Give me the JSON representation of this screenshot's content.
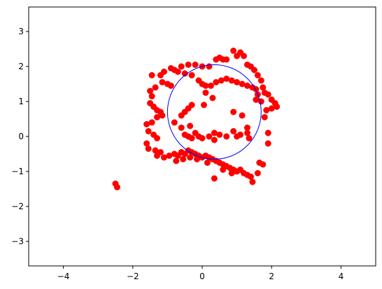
{
  "chart_data": {
    "type": "scatter",
    "title": "",
    "xlabel": "",
    "ylabel": "",
    "xlim": [
      -5,
      5
    ],
    "ylim": [
      -3.7,
      3.7
    ],
    "x_ticks": [
      -4,
      -2,
      0,
      2,
      4
    ],
    "y_ticks": [
      -3,
      -2,
      -1,
      0,
      1,
      2,
      3
    ],
    "x_tick_labels": [
      "−4",
      "−2",
      "0",
      "2",
      "4"
    ],
    "y_tick_labels": [
      "−3",
      "−2",
      "−1",
      "0",
      "1",
      "2",
      "3"
    ],
    "grid": false,
    "legend": "none",
    "marker_color": "#ff0000",
    "circle": {
      "center": [
        0.35,
        0.7
      ],
      "radius": 1.35,
      "color": "#0000ff"
    },
    "points": [
      [
        -0.6,
        2.0
      ],
      [
        -0.4,
        2.05
      ],
      [
        -0.2,
        2.05
      ],
      [
        0.0,
        2.0
      ],
      [
        0.2,
        2.0
      ],
      [
        0.4,
        2.2
      ],
      [
        0.5,
        2.25
      ],
      [
        0.6,
        2.2
      ],
      [
        0.7,
        2.2
      ],
      [
        0.9,
        2.45
      ],
      [
        1.0,
        2.3
      ],
      [
        1.1,
        2.4
      ],
      [
        1.2,
        2.3
      ],
      [
        1.3,
        2.05
      ],
      [
        1.4,
        2.0
      ],
      [
        1.5,
        1.9
      ],
      [
        1.6,
        1.75
      ],
      [
        1.7,
        1.6
      ],
      [
        1.75,
        1.4
      ],
      [
        1.8,
        1.25
      ],
      [
        1.9,
        1.2
      ],
      [
        2.0,
        1.05
      ],
      [
        2.1,
        0.95
      ],
      [
        2.15,
        0.85
      ],
      [
        2.0,
        0.8
      ],
      [
        1.85,
        0.75
      ],
      [
        1.8,
        0.55
      ],
      [
        1.9,
        0.1
      ],
      [
        1.9,
        -0.2
      ],
      [
        -1.45,
        1.75
      ],
      [
        -1.2,
        1.75
      ],
      [
        -1.1,
        1.85
      ],
      [
        -0.9,
        1.95
      ],
      [
        -0.8,
        1.9
      ],
      [
        -0.7,
        1.85
      ],
      [
        -0.5,
        1.8
      ],
      [
        -0.3,
        1.75
      ],
      [
        -0.1,
        1.6
      ],
      [
        0.0,
        1.5
      ],
      [
        0.1,
        1.45
      ],
      [
        0.25,
        1.45
      ],
      [
        0.4,
        1.55
      ],
      [
        0.55,
        1.6
      ],
      [
        0.7,
        1.65
      ],
      [
        0.85,
        1.6
      ],
      [
        1.0,
        1.55
      ],
      [
        1.15,
        1.5
      ],
      [
        1.3,
        1.45
      ],
      [
        1.45,
        1.4
      ],
      [
        1.55,
        1.35
      ],
      [
        1.6,
        1.2
      ],
      [
        1.55,
        1.05
      ],
      [
        1.7,
        1.0
      ],
      [
        -0.9,
        1.45
      ],
      [
        -1.0,
        1.5
      ],
      [
        -1.15,
        1.55
      ],
      [
        -1.35,
        1.4
      ],
      [
        -1.5,
        1.3
      ],
      [
        -1.45,
        1.15
      ],
      [
        -1.5,
        0.95
      ],
      [
        -1.4,
        0.85
      ],
      [
        -1.3,
        0.75
      ],
      [
        -1.2,
        0.7
      ],
      [
        -1.15,
        0.6
      ],
      [
        -1.3,
        0.55
      ],
      [
        -1.45,
        0.4
      ],
      [
        -1.6,
        0.35
      ],
      [
        -1.55,
        0.15
      ],
      [
        -1.4,
        0.05
      ],
      [
        -1.3,
        -0.05
      ],
      [
        -1.6,
        -0.2
      ],
      [
        -1.55,
        -0.35
      ],
      [
        -1.35,
        -0.4
      ],
      [
        -1.2,
        -0.45
      ],
      [
        -1.3,
        -0.55
      ],
      [
        -1.1,
        -0.6
      ],
      [
        -0.95,
        -0.55
      ],
      [
        -0.8,
        -0.5
      ],
      [
        -0.7,
        -0.55
      ],
      [
        -0.6,
        -0.45
      ],
      [
        -0.5,
        -0.5
      ],
      [
        -0.4,
        -0.4
      ],
      [
        -0.3,
        -0.45
      ],
      [
        -0.2,
        -0.5
      ],
      [
        -0.1,
        -0.55
      ],
      [
        0.0,
        -0.6
      ],
      [
        0.1,
        -0.55
      ],
      [
        0.2,
        -0.6
      ],
      [
        0.3,
        -0.65
      ],
      [
        0.4,
        -0.7
      ],
      [
        0.5,
        -0.75
      ],
      [
        0.6,
        -0.8
      ],
      [
        0.7,
        -0.85
      ],
      [
        0.8,
        -0.9
      ],
      [
        0.9,
        -0.95
      ],
      [
        1.0,
        -1.0
      ],
      [
        1.1,
        -0.95
      ],
      [
        1.2,
        -1.05
      ],
      [
        1.3,
        -1.1
      ],
      [
        1.4,
        -1.15
      ],
      [
        1.45,
        -1.3
      ],
      [
        1.6,
        -1.05
      ],
      [
        1.75,
        -0.8
      ],
      [
        1.65,
        -0.75
      ],
      [
        -0.75,
        -0.7
      ],
      [
        -0.55,
        -0.65
      ],
      [
        -0.35,
        -0.6
      ],
      [
        -0.15,
        -0.65
      ],
      [
        0.15,
        -0.75
      ],
      [
        0.35,
        -1.2
      ],
      [
        0.6,
        -0.95
      ],
      [
        0.85,
        -1.05
      ],
      [
        -0.8,
        0.4
      ],
      [
        -0.6,
        0.25
      ],
      [
        -0.5,
        0.05
      ],
      [
        -0.4,
        0.0
      ],
      [
        -0.2,
        0.1
      ],
      [
        -0.1,
        0.0
      ],
      [
        0.0,
        -0.05
      ],
      [
        0.2,
        0.0
      ],
      [
        0.35,
        0.1
      ],
      [
        0.5,
        0.05
      ],
      [
        0.7,
        0.0
      ],
      [
        0.9,
        0.15
      ],
      [
        1.0,
        0.0
      ],
      [
        1.1,
        0.05
      ],
      [
        1.3,
        0.1
      ],
      [
        1.35,
        -0.05
      ],
      [
        1.3,
        0.25
      ],
      [
        -0.3,
        -0.05
      ],
      [
        0.35,
        -0.1
      ],
      [
        -0.6,
        0.6
      ],
      [
        -0.5,
        0.7
      ],
      [
        -0.4,
        0.8
      ],
      [
        -0.3,
        0.9
      ],
      [
        0.05,
        0.9
      ],
      [
        0.3,
        1.1
      ],
      [
        0.1,
        1.25
      ],
      [
        0.9,
        0.7
      ],
      [
        1.15,
        0.6
      ],
      [
        -0.35,
        0.3
      ],
      [
        -2.5,
        -1.35
      ],
      [
        -2.45,
        -1.45
      ]
    ]
  }
}
